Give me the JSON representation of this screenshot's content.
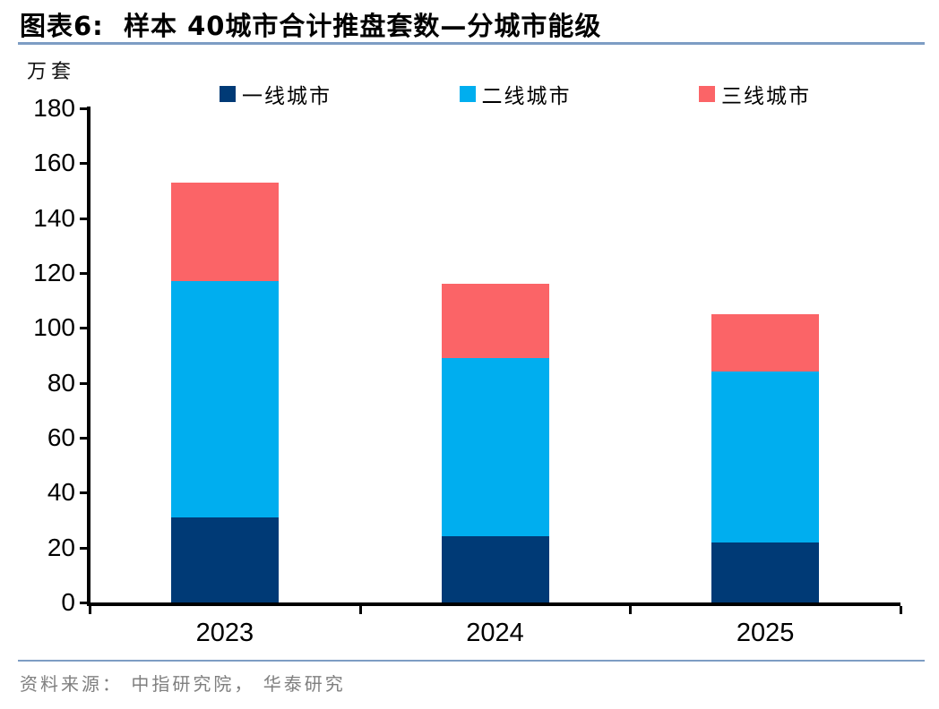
{
  "title": "图表6:  样本 40城市合计推盘套数—分城市能级",
  "source": "资料来源： 中指研究院， 华泰研究",
  "colors": {
    "tier1_navy": "#003a76",
    "tier2_lightblue": "#00aeef",
    "tier3_coral": "#fb6467",
    "divider_rule": "#7d9dc4",
    "axis": "#000000",
    "source_text": "#7f7f7f"
  },
  "chart_data": {
    "type": "bar",
    "stacked": true,
    "title": "样本 40城市合计推盘套数—分城市能级",
    "unit_label": "万套",
    "categories": [
      "2023",
      "2024",
      "2025"
    ],
    "series": [
      {
        "name": "一线城市",
        "color": "#003a76",
        "values": [
          31,
          24,
          22
        ]
      },
      {
        "name": "二线城市",
        "color": "#00aeef",
        "values": [
          86,
          65,
          62
        ]
      },
      {
        "name": "三线城市",
        "color": "#fb6467",
        "values": [
          36,
          27,
          21
        ]
      }
    ],
    "stack_totals": [
      153,
      116,
      105
    ],
    "ylim": [
      0,
      180
    ],
    "ytick_step": 20,
    "ytick_labels": [
      "0",
      "20",
      "40",
      "60",
      "80",
      "100",
      "120",
      "140",
      "160",
      "180"
    ],
    "legend_position": "top",
    "grid": false
  }
}
